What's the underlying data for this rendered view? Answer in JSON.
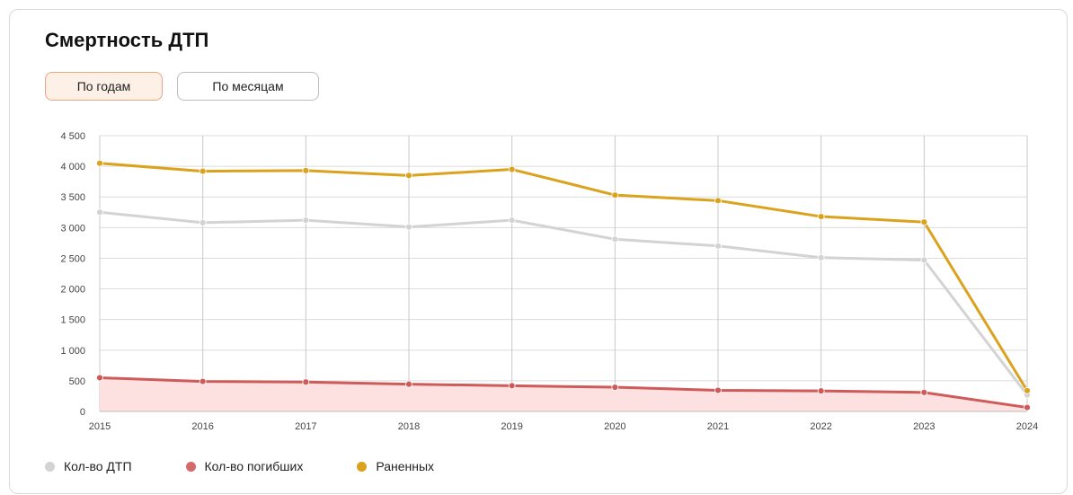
{
  "card": {
    "title": "Смертность ДТП",
    "tabs": [
      {
        "label": "По годам",
        "active": true
      },
      {
        "label": "По месяцам",
        "active": false
      }
    ]
  },
  "chart_data": {
    "type": "line",
    "title": "Смертность ДТП",
    "xlabel": "",
    "ylabel": "",
    "categories": [
      "2015",
      "2016",
      "2017",
      "2018",
      "2019",
      "2020",
      "2021",
      "2022",
      "2023",
      "2024"
    ],
    "ylim": [
      0,
      4500
    ],
    "yticks": [
      0,
      500,
      1000,
      1500,
      2000,
      2500,
      3000,
      3500,
      4000,
      4500
    ],
    "ytick_labels": [
      "0",
      "500",
      "1 000",
      "1 500",
      "2 000",
      "2 500",
      "3 000",
      "3 500",
      "4 000",
      "4 500"
    ],
    "grid": true,
    "legend_position": "bottom-left",
    "series": [
      {
        "name": "Кол-во ДТП",
        "color": "#d3d3d3",
        "fill": false,
        "values": [
          3250,
          3080,
          3120,
          3010,
          3120,
          2810,
          2700,
          2510,
          2470,
          270
        ]
      },
      {
        "name": "Кол-во погибших",
        "color": "#cf5a5a",
        "fill": true,
        "fill_color": "#fde0e0",
        "values": [
          550,
          490,
          480,
          445,
          420,
          395,
          345,
          335,
          310,
          65
        ]
      },
      {
        "name": "Раненных",
        "color": "#dba21e",
        "fill": false,
        "values": [
          4050,
          3920,
          3930,
          3850,
          3950,
          3530,
          3440,
          3180,
          3090,
          340
        ]
      }
    ]
  }
}
